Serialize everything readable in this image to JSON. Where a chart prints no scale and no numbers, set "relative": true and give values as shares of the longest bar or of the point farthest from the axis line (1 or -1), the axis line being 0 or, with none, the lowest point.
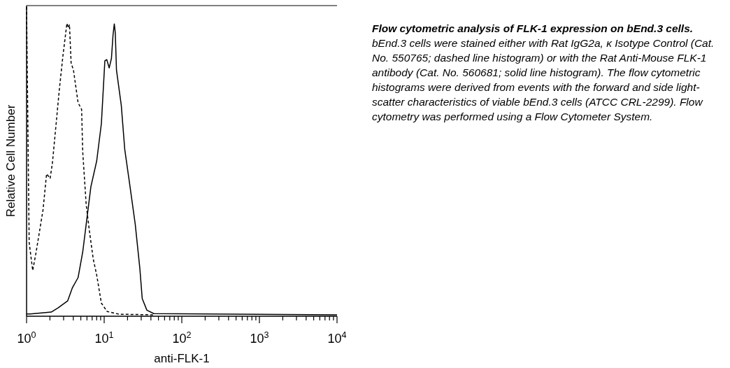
{
  "chart_data": {
    "type": "line",
    "relative": true,
    "log": "x",
    "title": "Flow cytometric analysis of FLK-1 expression on bEnd.3 cells.",
    "annotations": [
      "bEnd.3 cells were stained either with Rat IgG2a, κ Isotype Control (Cat. No. 550765; dashed line histogram) or with the Rat Anti-Mouse FLK-1 antibody (Cat. No. 560681; solid line histogram). The flow cytometric histograms were derived from events with the forward and side light-scatter characteristics of viable bEnd.3 cells (ATCC CRL-2299). Flow cytometry was performed using a Flow Cytometer System."
    ],
    "xlabel": "anti-FLK-1",
    "ylabel": "Relative Cell Number",
    "xlim": [
      1,
      10000
    ],
    "xticks": [
      {
        "value": 1,
        "label": "10$^{0}$"
      },
      {
        "value": 2,
        "label": null
      },
      {
        "value": 3,
        "label": null
      },
      {
        "value": 4,
        "label": null
      },
      {
        "value": 5,
        "label": null
      },
      {
        "value": 6,
        "label": null
      },
      {
        "value": 7,
        "label": null
      },
      {
        "value": 8,
        "label": null
      },
      {
        "value": 9,
        "label": null
      },
      {
        "value": 10,
        "label": "10$^{1}$"
      },
      {
        "value": 20,
        "label": null
      },
      {
        "value": 30,
        "label": null
      },
      {
        "value": 40,
        "label": null
      },
      {
        "value": 50,
        "label": null
      },
      {
        "value": 60,
        "label": null
      },
      {
        "value": 70,
        "label": null
      },
      {
        "value": 80,
        "label": null
      },
      {
        "value": 90,
        "label": null
      },
      {
        "value": 100,
        "label": "10$^{2}$"
      },
      {
        "value": 200,
        "label": null
      },
      {
        "value": 300,
        "label": null
      },
      {
        "value": 400,
        "label": null
      },
      {
        "value": 500,
        "label": null
      },
      {
        "value": 600,
        "label": null
      },
      {
        "value": 700,
        "label": null
      },
      {
        "value": 800,
        "label": null
      },
      {
        "value": 900,
        "label": null
      },
      {
        "value": 1000,
        "label": "10$^{3}$"
      },
      {
        "value": 2000,
        "label": null
      },
      {
        "value": 3000,
        "label": null
      },
      {
        "value": 4000,
        "label": null
      },
      {
        "value": 5000,
        "label": null
      },
      {
        "value": 6000,
        "label": null
      },
      {
        "value": 7000,
        "label": null
      },
      {
        "value": 8000,
        "label": null
      },
      {
        "value": 9000,
        "label": null
      },
      {
        "value": 10000,
        "label": "10$^{4}$"
      }
    ],
    "series": [
      {
        "color": "#000000",
        "line_style": "dashed",
        "x": [
          1,
          1.08,
          1.2,
          1.33,
          1.63,
          1.81,
          2.01,
          2.15,
          2.39,
          2.65,
          2.94,
          3.31,
          3.45,
          3.57,
          3.75,
          4.02,
          4.61,
          5.12,
          5.29,
          5.87,
          6.51,
          7.22,
          8.01,
          9.2,
          10.9,
          15.5,
          43.6
        ],
        "values": [
          1,
          0.235,
          0.144,
          0.205,
          0.341,
          0.458,
          0.443,
          0.492,
          0.614,
          0.735,
          0.841,
          0.947,
          0.932,
          0.943,
          0.818,
          0.795,
          0.689,
          0.667,
          0.53,
          0.356,
          0.265,
          0.182,
          0.129,
          0.038,
          0.011,
          0.002,
          0
        ]
      },
      {
        "color": "#000000",
        "line_style": "solid",
        "x": [
          1,
          1.12,
          2.08,
          2.56,
          3.38,
          3.88,
          4.61,
          5.29,
          5.87,
          6.74,
          8.01,
          9.2,
          10.2,
          10.8,
          11.6,
          12.4,
          13,
          13.5,
          13.9,
          14.4,
          16.6,
          18.4,
          21.1,
          25.1,
          28.8,
          30.9,
          35.5,
          43.6,
          10000
        ],
        "values": [
          0.003,
          0.003,
          0.009,
          0.023,
          0.045,
          0.087,
          0.121,
          0.204,
          0.295,
          0.416,
          0.5,
          0.621,
          0.825,
          0.829,
          0.802,
          0.833,
          0.909,
          0.945,
          0.916,
          0.795,
          0.681,
          0.538,
          0.432,
          0.295,
          0.151,
          0.053,
          0.015,
          0.004,
          0
        ]
      }
    ]
  }
}
